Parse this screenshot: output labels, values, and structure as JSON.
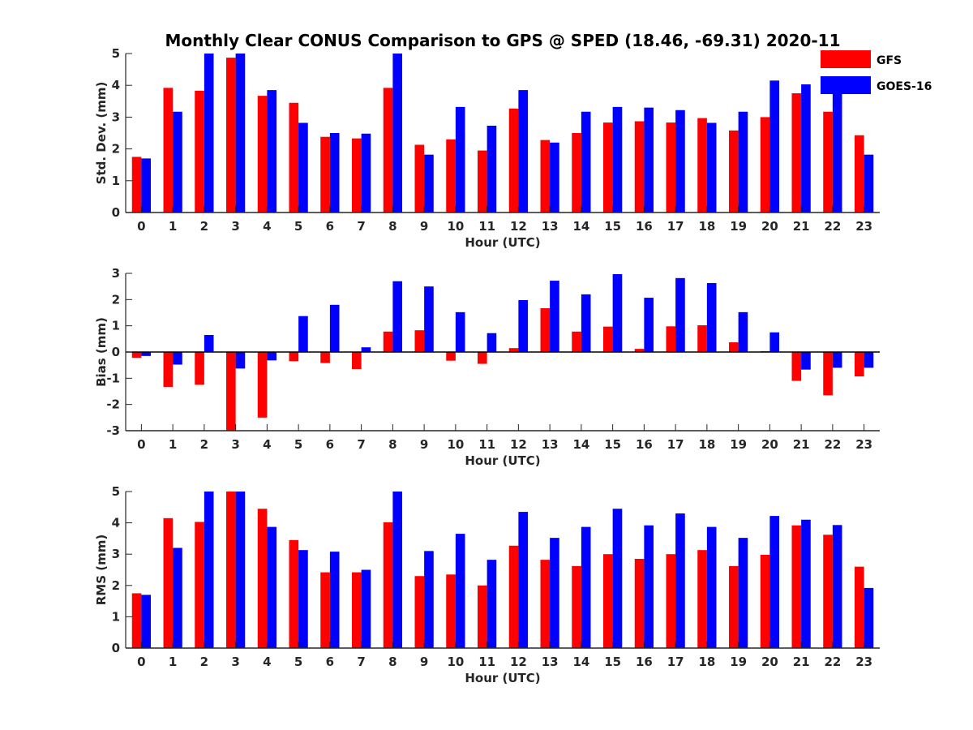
{
  "chart_data": {
    "type": "bar",
    "title": "Monthly Clear CONUS Comparison to GPS @ SPED (18.46, -69.31) 2020-11",
    "legend": {
      "placement": "top-right",
      "entries": [
        {
          "name": "GFS",
          "color": "#ff0000"
        },
        {
          "name": "GOES-16",
          "color": "#0000ff"
        }
      ]
    },
    "categories": [
      "0",
      "1",
      "2",
      "3",
      "4",
      "5",
      "6",
      "7",
      "8",
      "9",
      "10",
      "11",
      "12",
      "13",
      "14",
      "15",
      "16",
      "17",
      "18",
      "19",
      "20",
      "21",
      "22",
      "23"
    ],
    "panels": [
      {
        "id": "std",
        "ylabel": "Std. Dev. (mm)",
        "xlabel": "Hour (UTC)",
        "ylim": [
          0,
          5
        ],
        "yticks": [
          0,
          1,
          2,
          3,
          4,
          5
        ],
        "series": [
          {
            "name": "GFS",
            "values": [
              1.75,
              3.92,
              3.83,
              4.87,
              3.67,
              3.45,
              2.38,
              2.33,
              3.92,
              2.13,
              2.3,
              1.95,
              3.27,
              2.28,
              2.5,
              2.83,
              2.87,
              2.83,
              2.97,
              2.58,
              3.0,
              3.75,
              3.17,
              2.43
            ]
          },
          {
            "name": "GOES-16",
            "values": [
              1.7,
              3.17,
              5.0,
              5.0,
              3.85,
              2.82,
              2.5,
              2.48,
              5.0,
              1.82,
              3.32,
              2.73,
              3.85,
              2.2,
              3.17,
              3.32,
              3.3,
              3.22,
              2.82,
              3.17,
              4.15,
              4.03,
              3.87,
              1.82
            ]
          }
        ]
      },
      {
        "id": "bias",
        "ylabel": "Bias (mm)",
        "xlabel": "Hour (UTC)",
        "ylim": [
          -3,
          3
        ],
        "yticks": [
          -3,
          -2,
          -1,
          0,
          1,
          2,
          3
        ],
        "zero_line": true,
        "series": [
          {
            "name": "GFS",
            "values": [
              -0.22,
              -1.33,
              -1.25,
              -3.0,
              -2.5,
              -0.35,
              -0.42,
              -0.65,
              0.78,
              0.83,
              -0.33,
              -0.45,
              0.15,
              1.67,
              0.78,
              0.97,
              0.12,
              0.98,
              1.02,
              0.37,
              0.03,
              -1.1,
              -1.65,
              -0.93
            ]
          },
          {
            "name": "GOES-16",
            "values": [
              -0.15,
              -0.48,
              0.65,
              -0.63,
              -0.32,
              1.37,
              1.8,
              0.18,
              2.7,
              2.5,
              1.52,
              0.72,
              1.98,
              2.72,
              2.2,
              2.97,
              2.07,
              2.82,
              2.63,
              1.52,
              0.75,
              -0.67,
              -0.6,
              -0.6
            ]
          }
        ]
      },
      {
        "id": "rms",
        "ylabel": "RMS (mm)",
        "xlabel": "Hour (UTC)",
        "ylim": [
          0,
          5
        ],
        "yticks": [
          0,
          1,
          2,
          3,
          4,
          5
        ],
        "series": [
          {
            "name": "GFS",
            "values": [
              1.75,
              4.15,
              4.03,
              5.0,
              4.45,
              3.45,
              2.42,
              2.42,
              4.02,
              2.3,
              2.35,
              2.0,
              3.27,
              2.82,
              2.62,
              3.0,
              2.85,
              3.0,
              3.13,
              2.62,
              2.98,
              3.92,
              3.62,
              2.6
            ]
          },
          {
            "name": "GOES-16",
            "values": [
              1.7,
              3.2,
              5.0,
              5.0,
              3.87,
              3.13,
              3.08,
              2.5,
              5.0,
              3.1,
              3.65,
              2.82,
              4.35,
              3.52,
              3.87,
              4.45,
              3.92,
              4.3,
              3.87,
              3.52,
              4.22,
              4.1,
              3.93,
              1.92
            ]
          }
        ]
      }
    ]
  }
}
